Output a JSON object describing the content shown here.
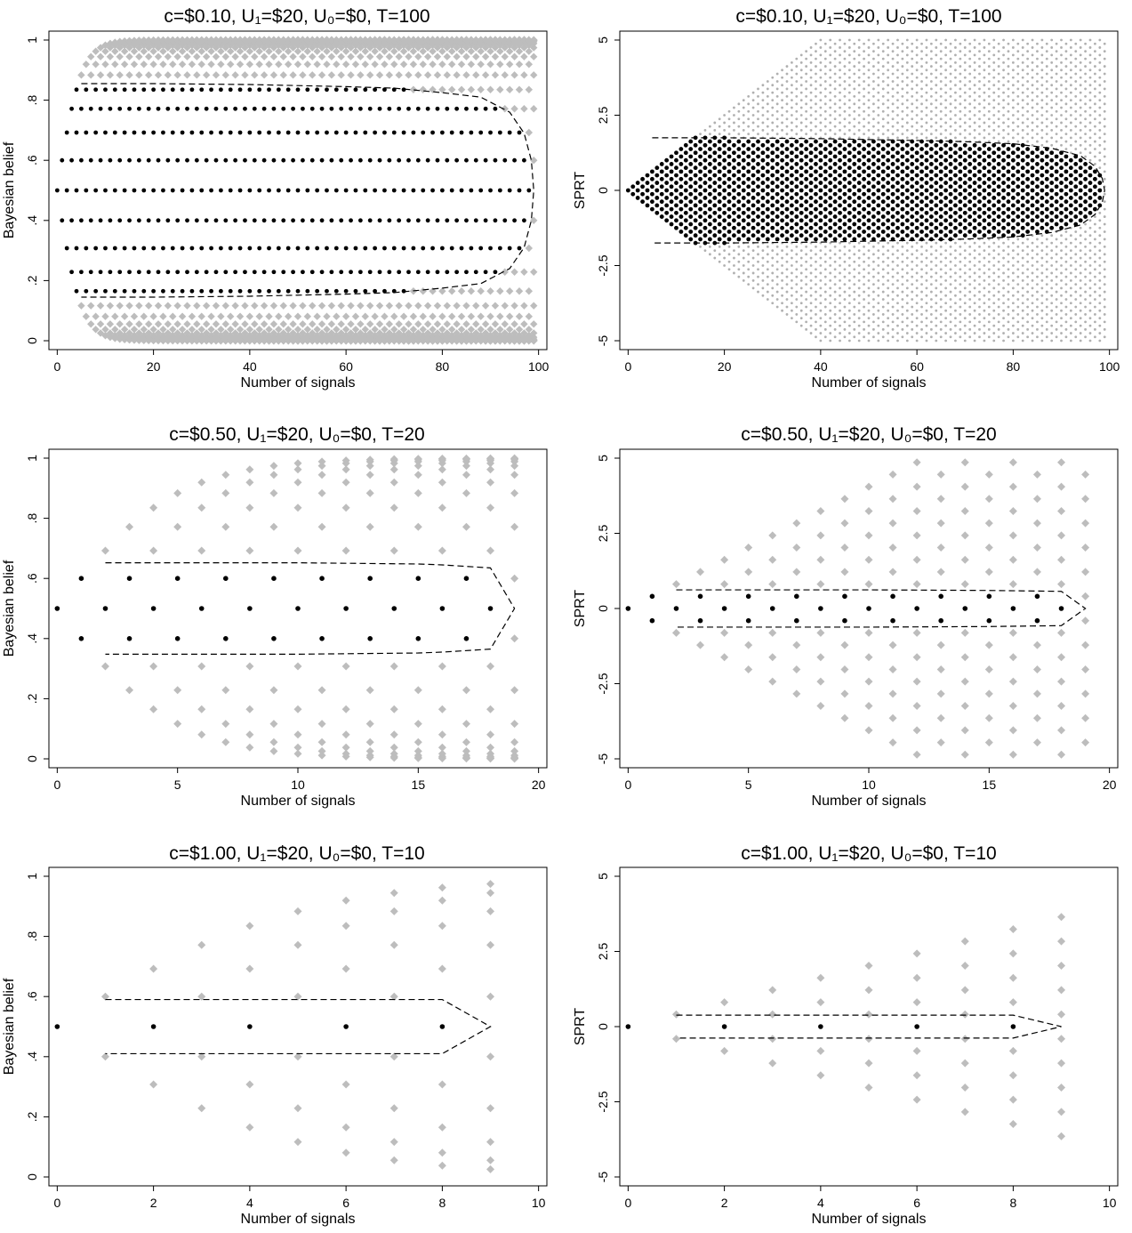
{
  "figure": {
    "panels": [
      {
        "id": "belief-c010",
        "title": "c=$0.10, U₁=$20, U₀=$0, T=100",
        "xlabel": "Number of signals",
        "ylabel": "Bayesian belief",
        "x_ticks": [
          0,
          20,
          40,
          60,
          80,
          100
        ],
        "x_tick_labels": [
          "0",
          "20",
          "40",
          "60",
          "80",
          "100"
        ],
        "y_ticks": [
          0,
          0.2,
          0.4,
          0.6,
          0.8,
          1
        ],
        "y_tick_labels": [
          "0",
          ".2",
          ".4",
          ".6",
          ".8",
          "1"
        ]
      },
      {
        "id": "sprt-c010",
        "title": "c=$0.10, U₁=$20, U₀=$0, T=100",
        "xlabel": "Number of signals",
        "ylabel": "SPRT",
        "x_ticks": [
          0,
          20,
          40,
          60,
          80,
          100
        ],
        "x_tick_labels": [
          "0",
          "20",
          "40",
          "60",
          "80",
          "100"
        ],
        "y_ticks": [
          -5,
          -2.5,
          0,
          2.5,
          5
        ],
        "y_tick_labels": [
          "-5",
          "-2.5",
          "0",
          "2.5",
          "5"
        ]
      },
      {
        "id": "belief-c050",
        "title": "c=$0.50, U₁=$20, U₀=$0, T=20",
        "xlabel": "Number of signals",
        "ylabel": "Bayesian belief",
        "x_ticks": [
          0,
          5,
          10,
          15,
          20
        ],
        "x_tick_labels": [
          "0",
          "5",
          "10",
          "15",
          "20"
        ],
        "y_ticks": [
          0,
          0.2,
          0.4,
          0.6,
          0.8,
          1
        ],
        "y_tick_labels": [
          "0",
          ".2",
          ".4",
          ".6",
          ".8",
          "1"
        ]
      },
      {
        "id": "sprt-c050",
        "title": "c=$0.50, U₁=$20, U₀=$0, T=20",
        "xlabel": "Number of signals",
        "ylabel": "SPRT",
        "x_ticks": [
          0,
          5,
          10,
          15,
          20
        ],
        "x_tick_labels": [
          "0",
          "5",
          "10",
          "15",
          "20"
        ],
        "y_ticks": [
          -5,
          -2.5,
          0,
          2.5,
          5
        ],
        "y_tick_labels": [
          "-5",
          "-2.5",
          "0",
          "2.5",
          "5"
        ]
      },
      {
        "id": "belief-c100",
        "title": "c=$1.00, U₁=$20, U₀=$0, T=10",
        "xlabel": "Number of signals",
        "ylabel": "Bayesian belief",
        "x_ticks": [
          0,
          2,
          4,
          6,
          8,
          10
        ],
        "x_tick_labels": [
          "0",
          "2",
          "4",
          "6",
          "8",
          "10"
        ],
        "y_ticks": [
          0,
          0.2,
          0.4,
          0.6,
          0.8,
          1
        ],
        "y_tick_labels": [
          "0",
          ".2",
          ".4",
          ".6",
          ".8",
          "1"
        ]
      },
      {
        "id": "sprt-c100",
        "title": "c=$1.00, U₁=$20, U₀=$0, T=10",
        "xlabel": "Number of signals",
        "ylabel": "SPRT",
        "x_ticks": [
          0,
          2,
          4,
          6,
          8,
          10
        ],
        "x_tick_labels": [
          "0",
          "2",
          "4",
          "6",
          "8",
          "10"
        ],
        "y_ticks": [
          -5,
          -2.5,
          0,
          2.5,
          5
        ],
        "y_tick_labels": [
          "-5",
          "-2.5",
          "0",
          "2.5",
          "5"
        ]
      }
    ]
  },
  "chart_data": [
    {
      "type": "scatter",
      "title": "c=$0.10, U₁=$20, U₀=$0, T=100",
      "xlabel": "Number of signals",
      "ylabel": "Bayesian belief",
      "xlim": [
        0,
        100
      ],
      "ylim": [
        0,
        1
      ],
      "scale": "belief",
      "max_signals": 99,
      "signal_step": 0.4,
      "boundary_level_min": 6,
      "boundary_level_max": 4,
      "boundary_upper": [
        [
          5,
          0.855
        ],
        [
          20,
          0.855
        ],
        [
          40,
          0.852
        ],
        [
          60,
          0.845
        ],
        [
          70,
          0.84
        ],
        [
          80,
          0.825
        ],
        [
          88,
          0.81
        ],
        [
          94,
          0.76
        ],
        [
          97,
          0.69
        ],
        [
          98.5,
          0.6
        ],
        [
          99,
          0.5
        ]
      ],
      "boundary_lower": [
        [
          5,
          0.145
        ],
        [
          20,
          0.145
        ],
        [
          40,
          0.148
        ],
        [
          60,
          0.155
        ],
        [
          70,
          0.16
        ],
        [
          80,
          0.175
        ],
        [
          88,
          0.19
        ],
        [
          94,
          0.24
        ],
        [
          97,
          0.31
        ],
        [
          98.5,
          0.4
        ],
        [
          99,
          0.5
        ]
      ],
      "continue_marker": "black dot",
      "stop_marker": "gray diamond",
      "grid": false,
      "legend": "none"
    },
    {
      "type": "scatter",
      "title": "c=$0.10, U₁=$20, U₀=$0, T=100",
      "xlabel": "Number of signals",
      "ylabel": "SPRT",
      "xlim": [
        0,
        100
      ],
      "ylim": [
        -5,
        5
      ],
      "scale": "sprt",
      "max_signals": 99,
      "signal_step": 0.4,
      "boundary_level_min": 6,
      "boundary_level_max": 4,
      "boundary_upper": [
        [
          5,
          1.75
        ],
        [
          20,
          1.75
        ],
        [
          40,
          1.72
        ],
        [
          60,
          1.66
        ],
        [
          70,
          1.62
        ],
        [
          80,
          1.55
        ],
        [
          88,
          1.4
        ],
        [
          94,
          1.15
        ],
        [
          97,
          0.8
        ],
        [
          98.5,
          0.4
        ],
        [
          99,
          0
        ]
      ],
      "boundary_lower": [
        [
          5,
          -1.75
        ],
        [
          20,
          -1.75
        ],
        [
          40,
          -1.72
        ],
        [
          60,
          -1.66
        ],
        [
          70,
          -1.62
        ],
        [
          80,
          -1.55
        ],
        [
          88,
          -1.4
        ],
        [
          94,
          -1.15
        ],
        [
          97,
          -0.8
        ],
        [
          98.5,
          -0.4
        ],
        [
          99,
          0
        ]
      ],
      "continue_marker": "black dot",
      "stop_marker": "gray dot",
      "grid": false,
      "legend": "none"
    },
    {
      "type": "scatter",
      "title": "c=$0.50, U₁=$20, U₀=$0, T=20",
      "xlabel": "Number of signals",
      "ylabel": "Bayesian belief",
      "xlim": [
        0,
        20
      ],
      "ylim": [
        0,
        1
      ],
      "scale": "belief",
      "max_signals": 19,
      "signal_step": 0.4,
      "boundary_level_min": 2,
      "boundary_level_max": 1,
      "boundary_upper": [
        [
          2,
          0.652
        ],
        [
          5,
          0.652
        ],
        [
          10,
          0.652
        ],
        [
          15,
          0.648
        ],
        [
          16,
          0.645
        ],
        [
          18,
          0.635
        ],
        [
          19,
          0.5
        ]
      ],
      "boundary_lower": [
        [
          2,
          0.348
        ],
        [
          5,
          0.348
        ],
        [
          10,
          0.348
        ],
        [
          15,
          0.352
        ],
        [
          16,
          0.355
        ],
        [
          18,
          0.365
        ],
        [
          19,
          0.5
        ]
      ],
      "continue_marker": "black dot",
      "stop_marker": "gray diamond",
      "grid": false,
      "legend": "none"
    },
    {
      "type": "scatter",
      "title": "c=$0.50, U₁=$20, U₀=$0, T=20",
      "xlabel": "Number of signals",
      "ylabel": "SPRT",
      "xlim": [
        0,
        20
      ],
      "ylim": [
        -5,
        5
      ],
      "scale": "sprt",
      "max_signals": 19,
      "signal_step": 0.4,
      "boundary_level_min": 2,
      "boundary_level_max": 1,
      "boundary_upper": [
        [
          2,
          0.62
        ],
        [
          5,
          0.62
        ],
        [
          10,
          0.62
        ],
        [
          15,
          0.6
        ],
        [
          18,
          0.57
        ],
        [
          19,
          0
        ]
      ],
      "boundary_lower": [
        [
          2,
          -0.62
        ],
        [
          5,
          -0.62
        ],
        [
          10,
          -0.62
        ],
        [
          15,
          -0.6
        ],
        [
          18,
          -0.57
        ],
        [
          19,
          0
        ]
      ],
      "continue_marker": "black dot",
      "stop_marker": "gray diamond",
      "grid": false,
      "legend": "none"
    },
    {
      "type": "scatter",
      "title": "c=$1.00, U₁=$20, U₀=$0, T=10",
      "xlabel": "Number of signals",
      "ylabel": "Bayesian belief",
      "xlim": [
        0,
        10
      ],
      "ylim": [
        0,
        1
      ],
      "scale": "belief",
      "max_signals": 9,
      "signal_step": 0.4,
      "boundary_level_min": 1,
      "boundary_level_max": 0,
      "boundary_upper": [
        [
          1,
          0.59
        ],
        [
          8,
          0.59
        ],
        [
          9,
          0.5
        ]
      ],
      "boundary_lower": [
        [
          1,
          0.41
        ],
        [
          8,
          0.41
        ],
        [
          9,
          0.5
        ]
      ],
      "continue_marker": "black dot",
      "stop_marker": "gray diamond",
      "grid": false,
      "legend": "none"
    },
    {
      "type": "scatter",
      "title": "c=$1.00, U₁=$20, U₀=$0, T=10",
      "xlabel": "Number of signals",
      "ylabel": "SPRT",
      "xlim": [
        0,
        10
      ],
      "ylim": [
        -5,
        5
      ],
      "scale": "sprt",
      "max_signals": 9,
      "signal_step": 0.4,
      "boundary_level_min": 1,
      "boundary_level_max": 0,
      "boundary_upper": [
        [
          1,
          0.38
        ],
        [
          8,
          0.38
        ],
        [
          9,
          0
        ]
      ],
      "boundary_lower": [
        [
          1,
          -0.38
        ],
        [
          8,
          -0.38
        ],
        [
          9,
          0
        ]
      ],
      "continue_marker": "black dot",
      "stop_marker": "gray diamond",
      "grid": false,
      "legend": "none"
    }
  ]
}
